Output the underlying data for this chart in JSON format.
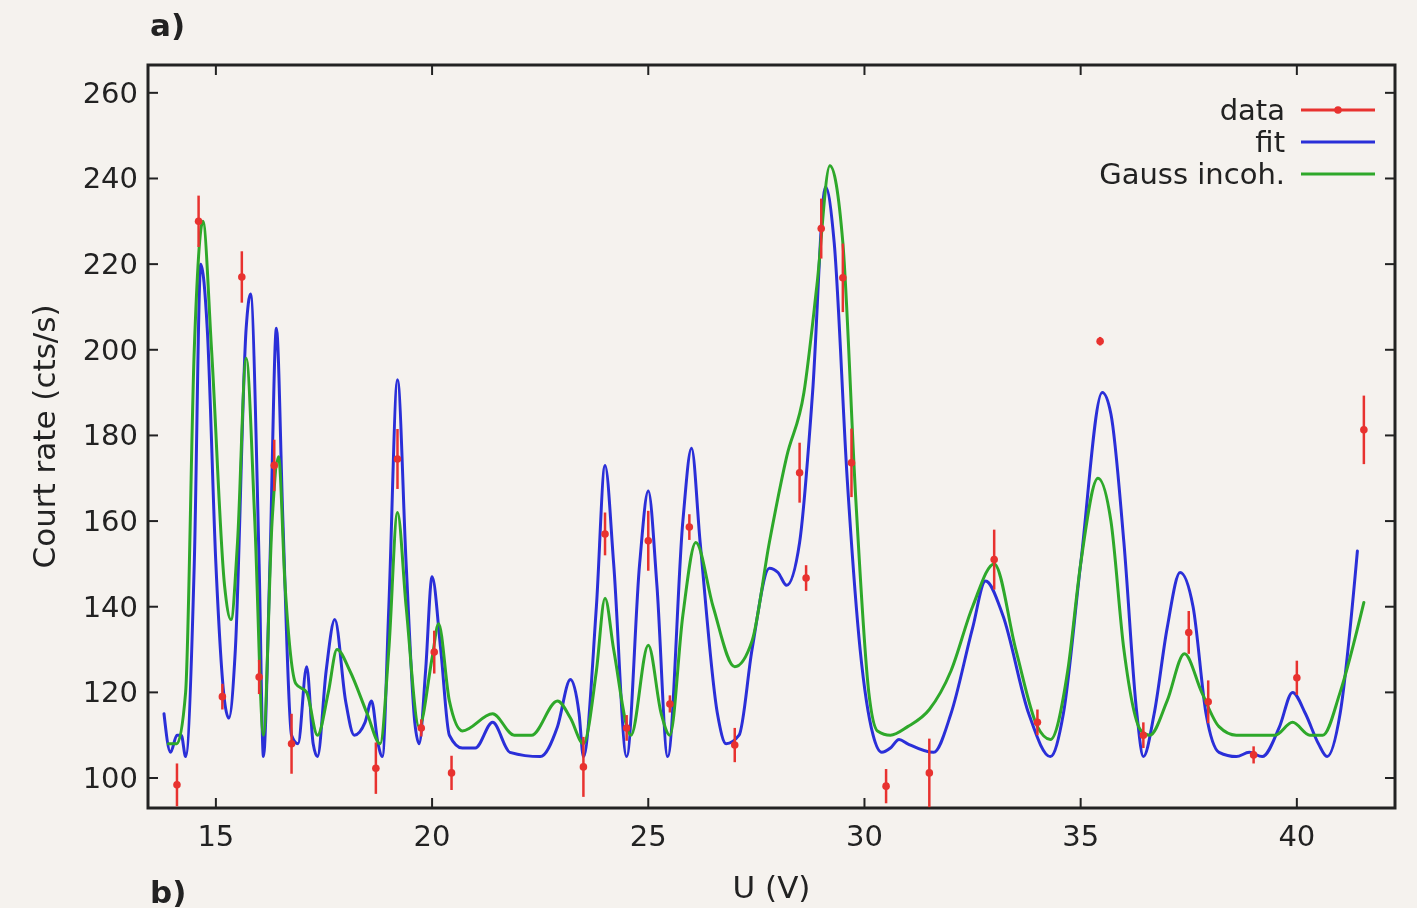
{
  "chart_data": {
    "type": "line",
    "xlabel": "U (V)",
    "ylabel": "Court rate (cts/s)",
    "annotations": [
      "a)",
      "b)"
    ],
    "xlim": [
      13.43,
      42.27
    ],
    "ylim": [
      93,
      266.5
    ],
    "xticks": [
      15,
      20,
      25,
      30,
      35,
      40
    ],
    "yticks": [
      100,
      120,
      140,
      160,
      180,
      200,
      220,
      240,
      260
    ],
    "legend": "top right",
    "series": [
      {
        "name": "data",
        "type": "scatter",
        "marker": "circle",
        "color": "#e8322f",
        "x": [
          14.1,
          14.6,
          15.15,
          15.6,
          16.0,
          16.35,
          16.75,
          18.7,
          19.2,
          19.75,
          20.05,
          20.45,
          23.5,
          24.0,
          24.5,
          25.0,
          25.5,
          25.95,
          27.0,
          28.5,
          28.65,
          29.0,
          29.5,
          29.7,
          30.5,
          31.5,
          33.0,
          34.0,
          35.45,
          36.45,
          37.5,
          37.95,
          39.0,
          40.0,
          41.55
        ],
        "values": [
          98.4,
          230,
          119,
          217,
          123.6,
          173,
          108,
          102.3,
          174.5,
          111.7,
          129.4,
          101.2,
          102.6,
          157,
          111.7,
          155.4,
          117.3,
          158.6,
          107.7,
          171.3,
          146.7,
          228.3,
          216.8,
          173.6,
          98.1,
          101.2,
          151,
          113,
          202,
          110,
          134,
          117.8,
          105.4,
          123.4,
          181.3
        ],
        "errors": [
          5,
          6,
          3,
          6,
          4,
          6,
          7,
          6,
          7,
          2,
          5,
          4,
          7,
          5,
          3,
          7,
          2,
          3,
          4,
          7,
          3,
          7,
          8,
          8,
          4,
          8,
          7,
          3,
          1,
          3,
          5,
          5,
          2,
          4,
          8
        ]
      },
      {
        "name": "fit",
        "line_style": "solid",
        "color": "#2a2fd8",
        "x": [
          13.8,
          13.95,
          14.1,
          14.2,
          14.3,
          14.5,
          14.65,
          14.8,
          15.0,
          15.2,
          15.3,
          15.45,
          15.7,
          15.8,
          16.0,
          16.1,
          16.25,
          16.4,
          16.55,
          16.75,
          16.9,
          17.1,
          17.25,
          17.35,
          17.55,
          17.75,
          18.0,
          18.2,
          18.45,
          18.6,
          18.75,
          18.85,
          19.0,
          19.2,
          19.4,
          19.6,
          19.7,
          19.85,
          20.0,
          20.2,
          20.4,
          20.7,
          21.0,
          21.4,
          21.8,
          22.5,
          22.9,
          23.2,
          23.4,
          23.5,
          23.8,
          24.0,
          24.2,
          24.5,
          24.8,
          25.0,
          25.2,
          25.45,
          25.8,
          26.0,
          26.2,
          26.6,
          26.8,
          27.1,
          27.4,
          27.8,
          28.0,
          28.2,
          28.5,
          28.8,
          29.1,
          29.3,
          29.6,
          29.9,
          30.2,
          30.4,
          30.6,
          30.8,
          31.0,
          31.6,
          32.0,
          32.5,
          32.8,
          33.2,
          33.8,
          34.3,
          34.6,
          35.0,
          35.5,
          35.7,
          36.0,
          36.3,
          36.45,
          36.7,
          37.0,
          37.3,
          37.6,
          37.9,
          38.2,
          38.6,
          38.9,
          39.2,
          39.6,
          39.9,
          40.2,
          40.5,
          40.7,
          41.0,
          41.4
        ],
        "values": [
          115,
          106,
          110,
          110,
          105,
          150,
          220,
          205,
          150,
          118,
          114,
          130,
          205,
          213,
          150,
          105,
          150,
          205,
          160,
          110,
          108,
          126,
          108,
          105,
          125,
          137,
          118,
          110,
          113,
          118,
          108,
          105,
          140,
          193,
          150,
          113,
          108,
          125,
          147,
          130,
          110,
          107,
          107,
          113,
          106,
          105,
          112,
          123,
          115,
          105,
          140,
          173,
          150,
          105,
          150,
          167,
          145,
          105,
          160,
          177,
          155,
          115,
          108,
          110,
          130,
          149,
          148,
          145,
          155,
          190,
          238,
          225,
          170,
          130,
          110,
          106,
          107,
          109,
          108,
          106,
          115,
          135,
          146,
          138,
          115,
          105,
          115,
          150,
          190,
          185,
          155,
          115,
          105,
          115,
          135,
          148,
          140,
          115,
          106,
          105,
          106,
          105,
          112,
          120,
          115,
          108,
          105,
          115,
          153
        ]
      },
      {
        "name": "Gauss incoh.",
        "line_style": "solid",
        "color": "#2ea82a",
        "x": [
          13.9,
          14.1,
          14.3,
          14.5,
          14.7,
          14.9,
          15.2,
          15.35,
          15.5,
          15.7,
          15.9,
          16.1,
          16.3,
          16.45,
          16.6,
          16.85,
          17.1,
          17.35,
          17.6,
          17.8,
          18.1,
          18.5,
          18.8,
          19.0,
          19.2,
          19.4,
          19.7,
          20.0,
          20.15,
          20.4,
          20.7,
          21.4,
          21.9,
          22.3,
          22.9,
          23.2,
          23.5,
          23.8,
          24.0,
          24.2,
          24.6,
          25.0,
          25.3,
          25.5,
          25.8,
          26.1,
          26.5,
          27.0,
          27.4,
          27.8,
          28.2,
          28.6,
          28.9,
          29.2,
          29.5,
          29.8,
          30.1,
          30.3,
          30.6,
          31.0,
          31.5,
          32.0,
          32.5,
          33.0,
          33.5,
          34.0,
          34.3,
          34.7,
          35.0,
          35.4,
          35.7,
          36.0,
          36.4,
          36.6,
          37.0,
          37.4,
          37.8,
          38.2,
          38.6,
          39.0,
          39.5,
          39.9,
          40.3,
          40.6,
          41.0,
          41.55
        ],
        "values": [
          108,
          108,
          120,
          200,
          230,
          200,
          145,
          137,
          155,
          198,
          160,
          110,
          160,
          175,
          145,
          122,
          120,
          110,
          120,
          130,
          125,
          115,
          108,
          130,
          162,
          140,
          112,
          128,
          136,
          118,
          111,
          115,
          110,
          110,
          118,
          114,
          108,
          125,
          142,
          130,
          110,
          131,
          115,
          110,
          138,
          155,
          140,
          126,
          132,
          155,
          175,
          190,
          215,
          243,
          225,
          165,
          120,
          111,
          110,
          112,
          116,
          125,
          140,
          150,
          130,
          112,
          109,
          125,
          150,
          170,
          160,
          130,
          111,
          110,
          118,
          129,
          120,
          112,
          110,
          110,
          110,
          113,
          110,
          110,
          120,
          141
        ]
      }
    ]
  }
}
